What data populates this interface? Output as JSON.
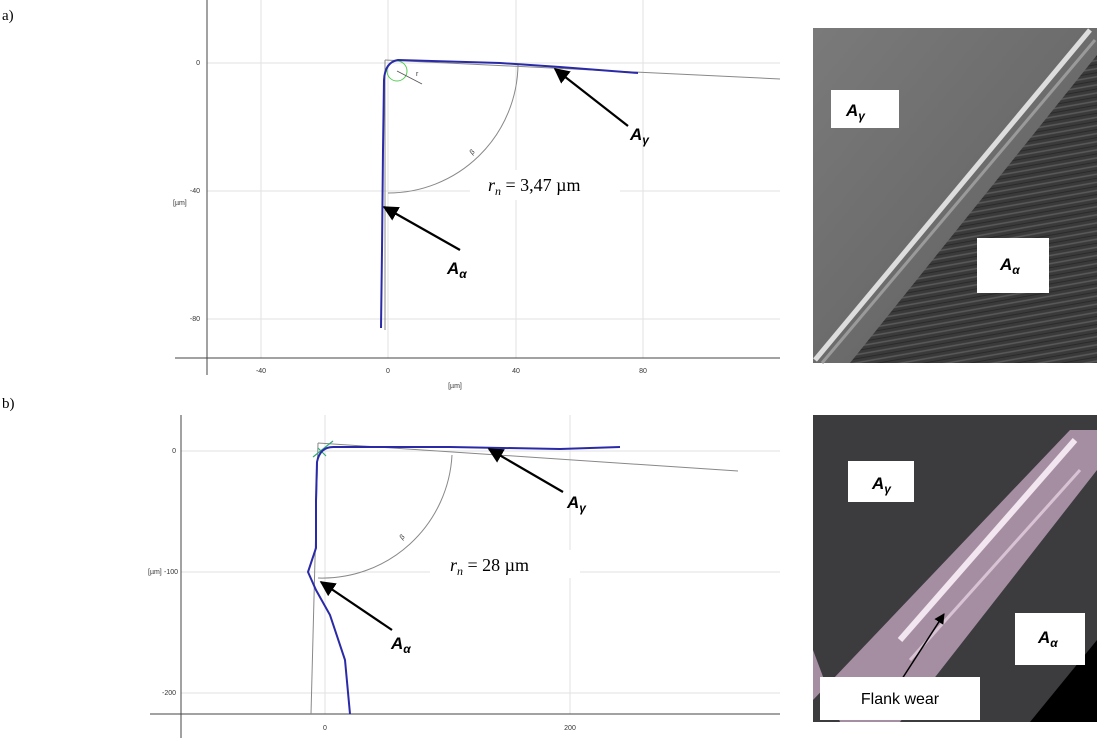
{
  "panels": [
    {
      "label": "a)",
      "chart": {
        "y_unit": "[µm]",
        "x_unit": "[µm]",
        "yticks": [
          "0",
          "-40",
          "-80"
        ],
        "xticks": [
          "-40",
          "0",
          "40",
          "80"
        ],
        "radius_label": {
          "symbol": "r",
          "sub": "n",
          "rest": " = 3,47 µm"
        },
        "angle_label": "β",
        "radius_mark": "r",
        "rake_label": {
          "main": "A",
          "sub": "γ"
        },
        "flank_label": {
          "main": "A",
          "sub": "α"
        }
      },
      "image": {
        "rake_label": {
          "main": "A",
          "sub": "γ"
        },
        "flank_label": {
          "main": "A",
          "sub": "α"
        }
      }
    },
    {
      "label": "b)",
      "chart": {
        "y_unit": "[µm]",
        "x_unit": "[µm]",
        "yticks": [
          "0",
          "-100",
          "-200"
        ],
        "xticks": [
          "0",
          "200"
        ],
        "radius_label": {
          "symbol": "r",
          "sub": "n",
          "rest": " = 28 µm"
        },
        "angle_label": "β",
        "rake_label": {
          "main": "A",
          "sub": "γ"
        },
        "flank_label": {
          "main": "A",
          "sub": "α"
        }
      },
      "image": {
        "rake_label": {
          "main": "A",
          "sub": "γ"
        },
        "flank_label": {
          "main": "A",
          "sub": "α"
        },
        "wear_label": "Flank wear"
      }
    }
  ]
}
